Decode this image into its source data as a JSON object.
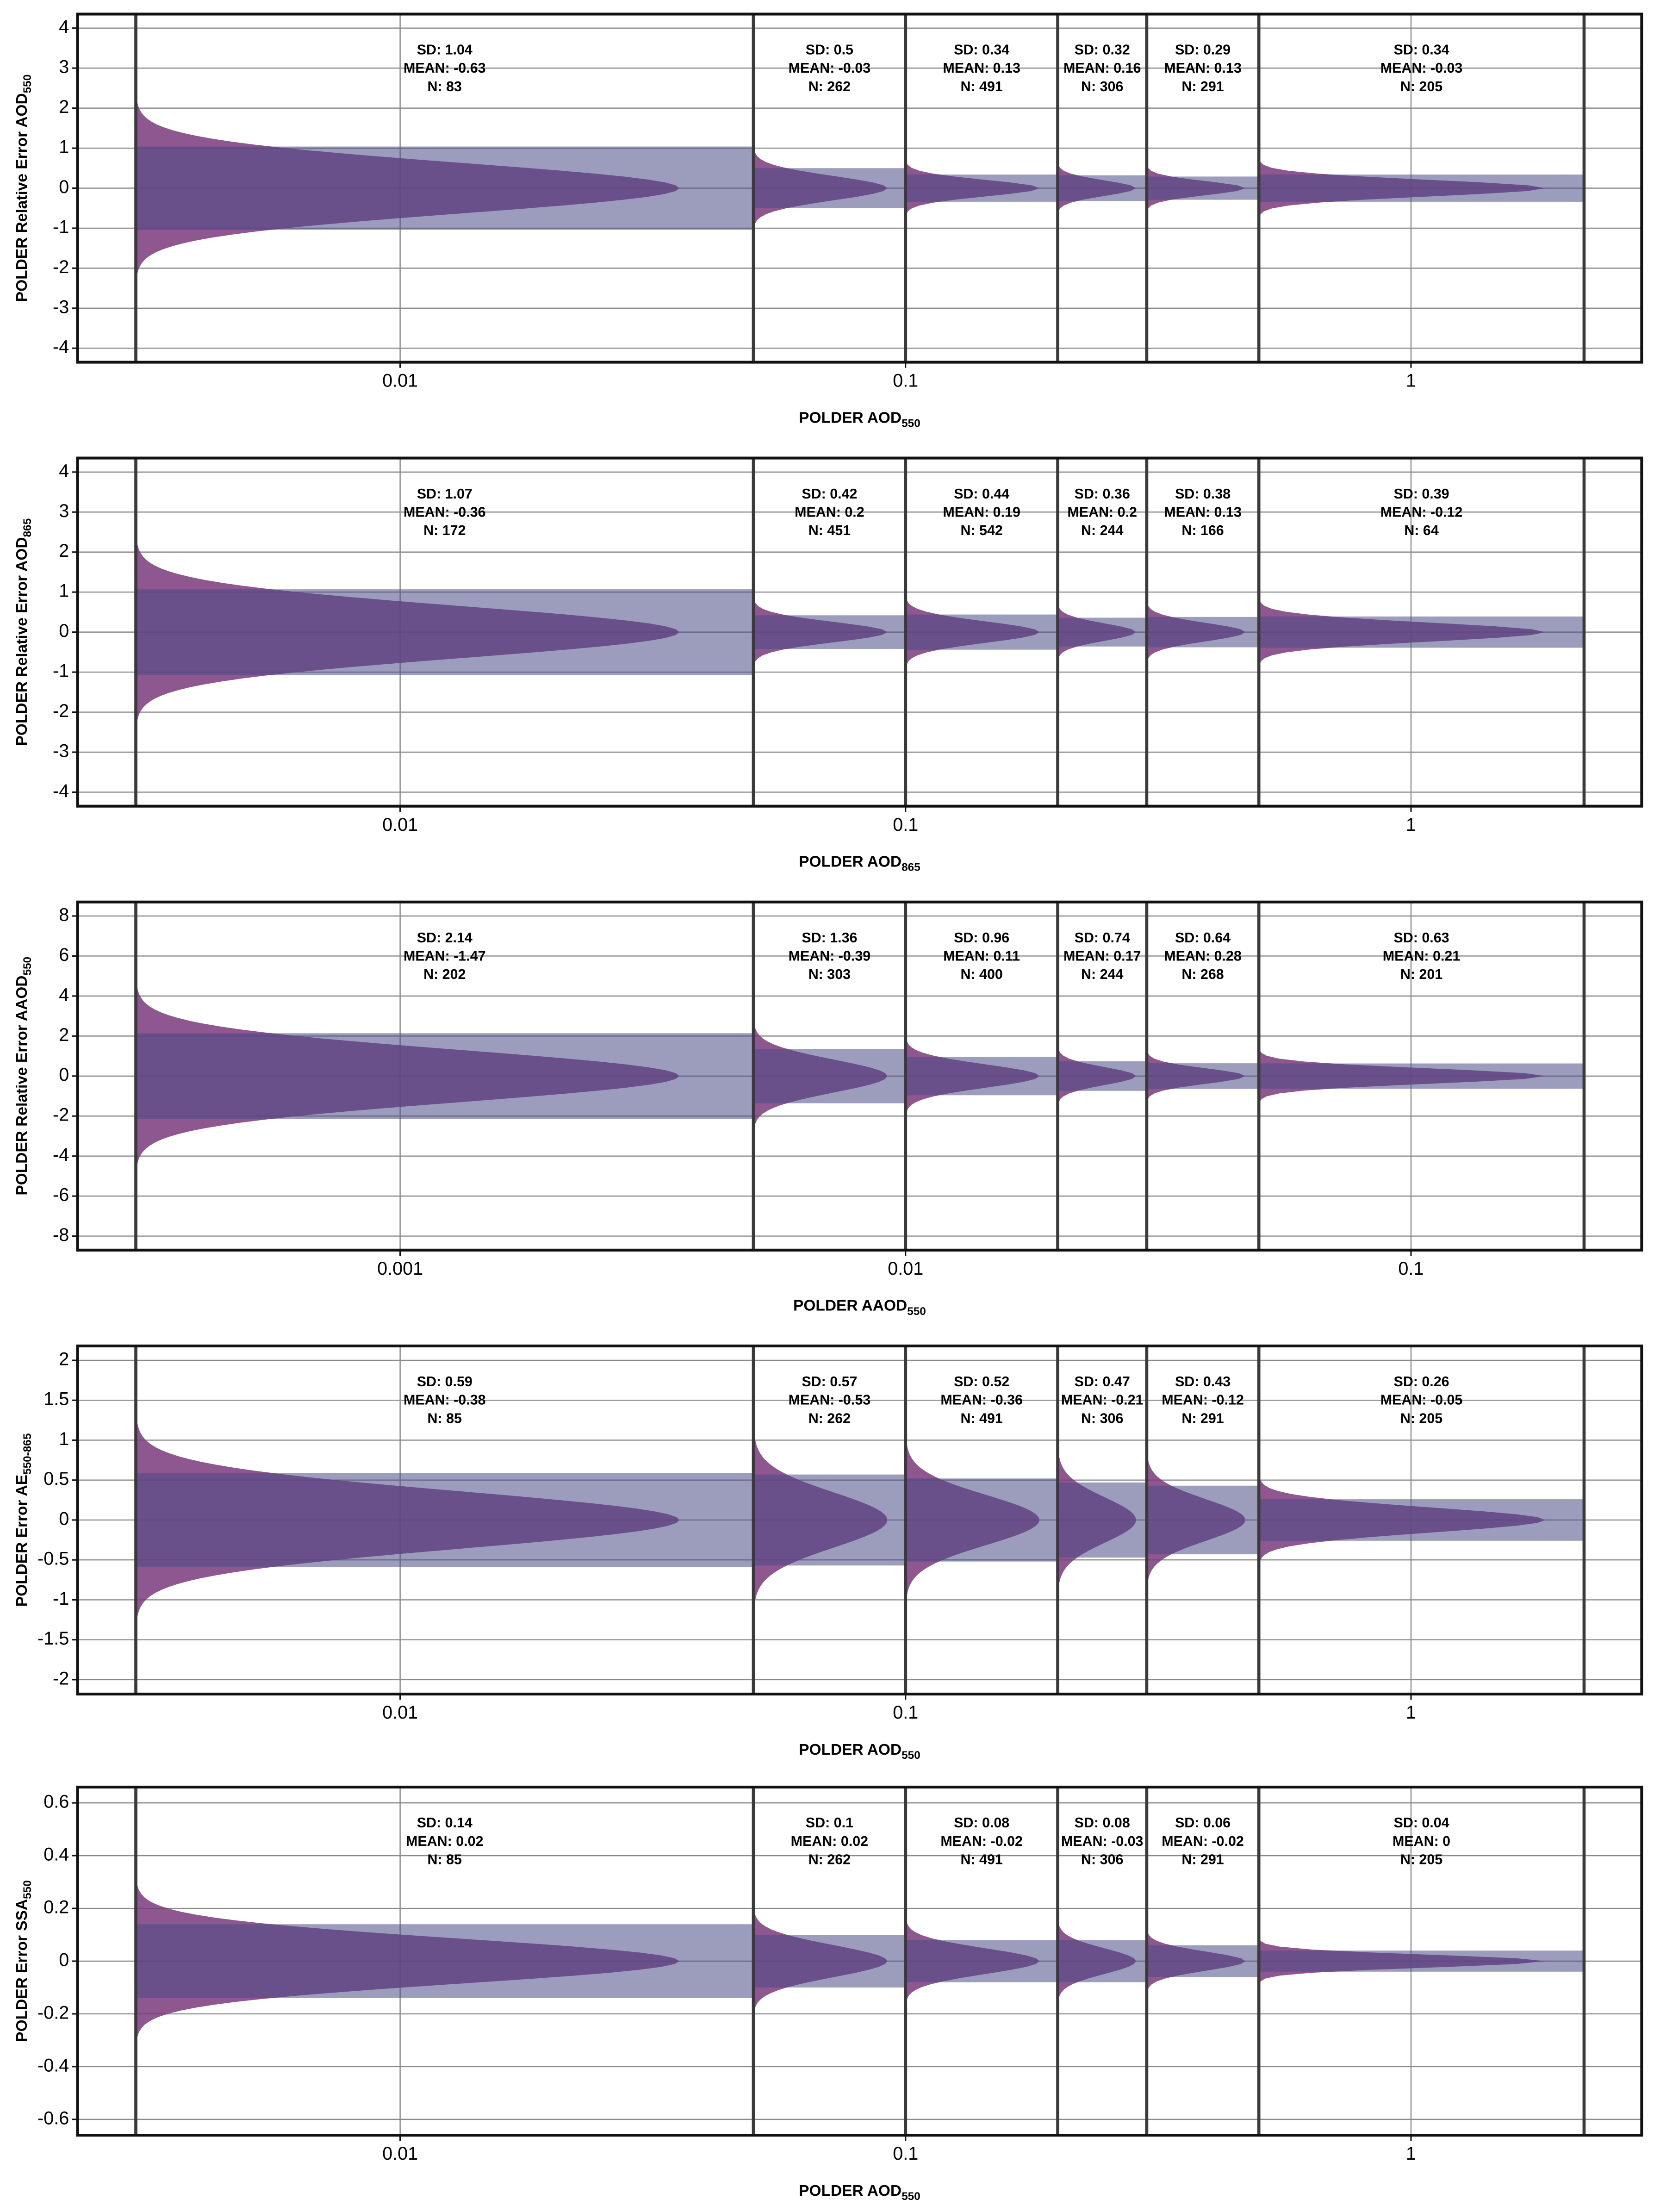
{
  "chart_data": [
    {
      "type": "violin",
      "xlabel": "POLDER AOD",
      "xlabel_sub": "550",
      "ylabel": "POLDER Relative Error AOD",
      "ylabel_sub": "550",
      "log_x": true,
      "grid": true,
      "xlim": [
        0.0023,
        2.86
      ],
      "xticks": [
        0.01,
        0.1,
        1
      ],
      "ylim": [
        -4.35,
        4.35
      ],
      "yticks": [
        -4,
        -3,
        -2,
        -1,
        0,
        1,
        2,
        3,
        4
      ],
      "bin_edges": [
        0.003,
        0.05,
        0.1,
        0.2,
        0.3,
        0.5,
        2.2
      ],
      "violin_color": "#7b3a7c",
      "band_color": "#4b4b85",
      "sd": [
        1.04,
        0.5,
        0.34,
        0.32,
        0.29,
        0.34
      ],
      "labels": [
        [
          "SD: 1.04",
          "MEAN: -0.63",
          "N: 83"
        ],
        [
          "SD: 0.5",
          "MEAN: -0.03",
          "N: 262"
        ],
        [
          "SD: 0.34",
          "MEAN: 0.13",
          "N: 491"
        ],
        [
          "SD: 0.32",
          "MEAN: 0.16",
          "N: 306"
        ],
        [
          "SD: 0.29",
          "MEAN: 0.13",
          "N: 291"
        ],
        [
          "SD: 0.34",
          "MEAN: -0.03",
          "N: 205"
        ]
      ]
    },
    {
      "type": "violin",
      "xlabel": "POLDER AOD",
      "xlabel_sub": "865",
      "ylabel": "POLDER Relative Error AOD",
      "ylabel_sub": "865",
      "log_x": true,
      "grid": true,
      "xlim": [
        0.0023,
        2.86
      ],
      "xticks": [
        0.01,
        0.1,
        1
      ],
      "ylim": [
        -4.35,
        4.35
      ],
      "yticks": [
        -4,
        -3,
        -2,
        -1,
        0,
        1,
        2,
        3,
        4
      ],
      "bin_edges": [
        0.003,
        0.05,
        0.1,
        0.2,
        0.3,
        0.5,
        2.2
      ],
      "violin_color": "#7b3a7c",
      "band_color": "#4b4b85",
      "sd": [
        1.07,
        0.42,
        0.44,
        0.36,
        0.38,
        0.39
      ],
      "labels": [
        [
          "SD: 1.07",
          "MEAN: -0.36",
          "N: 172"
        ],
        [
          "SD: 0.42",
          "MEAN: 0.2",
          "N: 451"
        ],
        [
          "SD: 0.44",
          "MEAN: 0.19",
          "N: 542"
        ],
        [
          "SD: 0.36",
          "MEAN: 0.2",
          "N: 244"
        ],
        [
          "SD: 0.38",
          "MEAN: 0.13",
          "N: 166"
        ],
        [
          "SD: 0.39",
          "MEAN: -0.12",
          "N: 64"
        ]
      ]
    },
    {
      "type": "violin",
      "xlabel": "POLDER AAOD",
      "xlabel_sub": "550",
      "ylabel": "POLDER Relative Error AAOD",
      "ylabel_sub": "550",
      "log_x": true,
      "grid": true,
      "xlim": [
        0.00023,
        0.286
      ],
      "xticks": [
        0.001,
        0.01,
        0.1
      ],
      "ylim": [
        -8.7,
        8.7
      ],
      "yticks": [
        -8,
        -6,
        -4,
        -2,
        0,
        2,
        4,
        6,
        8
      ],
      "bin_edges": [
        0.0003,
        0.005,
        0.01,
        0.02,
        0.03,
        0.05,
        0.22
      ],
      "violin_color": "#7b3a7c",
      "band_color": "#4b4b85",
      "sd": [
        2.14,
        1.36,
        0.96,
        0.74,
        0.64,
        0.63
      ],
      "labels": [
        [
          "SD: 2.14",
          "MEAN: -1.47",
          "N: 202"
        ],
        [
          "SD: 1.36",
          "MEAN: -0.39",
          "N: 303"
        ],
        [
          "SD: 0.96",
          "MEAN: 0.11",
          "N: 400"
        ],
        [
          "SD: 0.74",
          "MEAN: 0.17",
          "N: 244"
        ],
        [
          "SD: 0.64",
          "MEAN: 0.28",
          "N: 268"
        ],
        [
          "SD: 0.63",
          "MEAN: 0.21",
          "N: 201"
        ]
      ]
    },
    {
      "type": "violin",
      "xlabel": "POLDER AOD",
      "xlabel_sub": "550",
      "ylabel": "POLDER Error AE",
      "ylabel_sub": "550-865",
      "log_x": true,
      "grid": true,
      "xlim": [
        0.0023,
        2.86
      ],
      "xticks": [
        0.01,
        0.1,
        1
      ],
      "ylim": [
        -2.18,
        2.18
      ],
      "yticks": [
        -2,
        -1.5,
        -1,
        -0.5,
        0,
        0.5,
        1,
        1.5,
        2
      ],
      "bin_edges": [
        0.003,
        0.05,
        0.1,
        0.2,
        0.3,
        0.5,
        2.2
      ],
      "violin_color": "#7b3a7c",
      "band_color": "#4b4b85",
      "sd": [
        0.59,
        0.57,
        0.52,
        0.47,
        0.43,
        0.26
      ],
      "labels": [
        [
          "SD: 0.59",
          "MEAN: -0.38",
          "N: 85"
        ],
        [
          "SD: 0.57",
          "MEAN: -0.53",
          "N: 262"
        ],
        [
          "SD: 0.52",
          "MEAN: -0.36",
          "N: 491"
        ],
        [
          "SD: 0.47",
          "MEAN: -0.21",
          "N: 306"
        ],
        [
          "SD: 0.43",
          "MEAN: -0.12",
          "N: 291"
        ],
        [
          "SD: 0.26",
          "MEAN: -0.05",
          "N: 205"
        ]
      ]
    },
    {
      "type": "violin",
      "xlabel": "POLDER AOD",
      "xlabel_sub": "550",
      "ylabel": "POLDER Error SSA",
      "ylabel_sub": "550",
      "log_x": true,
      "grid": true,
      "xlim": [
        0.0023,
        2.86
      ],
      "xticks": [
        0.01,
        0.1,
        1
      ],
      "ylim": [
        -0.66,
        0.66
      ],
      "yticks": [
        -0.6,
        -0.4,
        -0.2,
        0,
        0.2,
        0.4,
        0.6
      ],
      "bin_edges": [
        0.003,
        0.05,
        0.1,
        0.2,
        0.3,
        0.5,
        2.2
      ],
      "violin_color": "#7b3a7c",
      "band_color": "#4b4b85",
      "sd": [
        0.14,
        0.1,
        0.08,
        0.08,
        0.06,
        0.04
      ],
      "labels": [
        [
          "SD: 0.14",
          "MEAN: 0.02",
          "N: 85"
        ],
        [
          "SD: 0.1",
          "MEAN: 0.02",
          "N: 262"
        ],
        [
          "SD: 0.08",
          "MEAN: -0.02",
          "N: 491"
        ],
        [
          "SD: 0.08",
          "MEAN: -0.03",
          "N: 306"
        ],
        [
          "SD: 0.06",
          "MEAN: -0.02",
          "N: 291"
        ],
        [
          "SD: 0.04",
          "MEAN: 0",
          "N: 205"
        ]
      ]
    }
  ]
}
